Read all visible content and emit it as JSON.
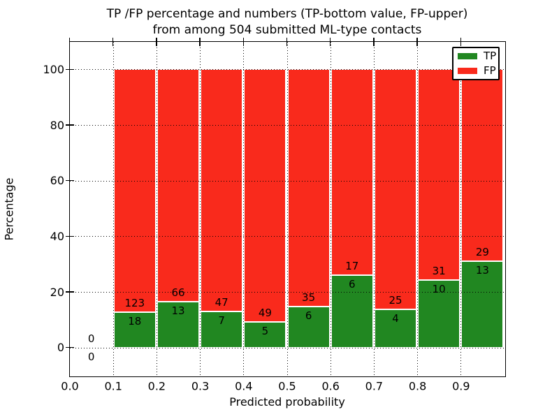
{
  "figure": {
    "title_line1": "TP /FP percentage and numbers (TP-bottom value, FP-upper)",
    "title_line2": "from among 504 submitted ML-type contacts"
  },
  "chart_data": {
    "type": "bar",
    "stacked": true,
    "percent_stacked": true,
    "title": "TP /FP percentage and numbers (TP-bottom value, FP-upper)\nfrom among 504 submitted ML-type contacts",
    "xlabel": "Predicted probability",
    "ylabel": "Percentage",
    "total_contacts": 504,
    "xlim": [
      0.0,
      1.0
    ],
    "ylim": [
      -10,
      110
    ],
    "grid": true,
    "x_tick_values": [
      0.0,
      0.1,
      0.2,
      0.3,
      0.4,
      0.5,
      0.6,
      0.7,
      0.8,
      0.9
    ],
    "x_tick_labels": [
      "0.0",
      "0.1",
      "0.2",
      "0.3",
      "0.4",
      "0.5",
      "0.6",
      "0.7",
      "0.8",
      "0.9"
    ],
    "y_tick_values": [
      0,
      20,
      40,
      60,
      80,
      100
    ],
    "y_tick_labels": [
      "0",
      "20",
      "40",
      "60",
      "80",
      "100"
    ],
    "bin_starts": [
      0.0,
      0.1,
      0.2,
      0.3,
      0.4,
      0.5,
      0.6,
      0.7,
      0.8,
      0.9
    ],
    "bin_width": 0.1,
    "series": [
      {
        "name": "TP",
        "color": "#218721",
        "counts": [
          0,
          18,
          13,
          7,
          5,
          6,
          6,
          4,
          10,
          13
        ],
        "pct": [
          0,
          12.77,
          16.46,
          12.96,
          9.26,
          14.63,
          26.09,
          13.79,
          24.39,
          30.95
        ]
      },
      {
        "name": "FP",
        "color": "#f92a1c",
        "counts": [
          0,
          123,
          66,
          47,
          49,
          35,
          17,
          25,
          31,
          29
        ],
        "pct": [
          0,
          87.23,
          83.54,
          87.04,
          90.74,
          85.37,
          73.91,
          86.21,
          75.61,
          69.05
        ]
      }
    ],
    "legend": {
      "position": "upper right",
      "entries": [
        {
          "label": "TP",
          "color": "#218721"
        },
        {
          "label": "FP",
          "color": "#f92a1c"
        }
      ]
    }
  }
}
